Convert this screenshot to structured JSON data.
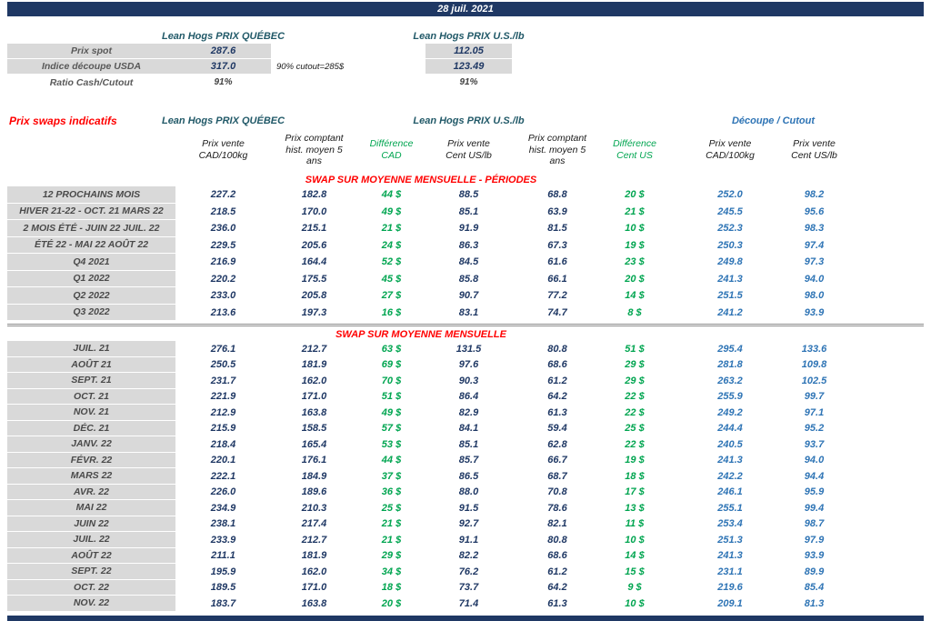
{
  "header": {
    "date": "28 juil. 2021"
  },
  "spot": {
    "qc_title": "Lean Hogs PRIX QUÉBEC",
    "us_title": "Lean Hogs PRIX U.S./lb",
    "rows": [
      {
        "label": "Prix spot",
        "qc": "287.6",
        "note": "",
        "us": "112.05"
      },
      {
        "label": "Indice découpe USDA",
        "qc": "317.0",
        "note": "90% cutout=285$",
        "us": "123.49"
      },
      {
        "label": "Ratio Cash/Cutout",
        "qc": "91%",
        "note": "",
        "us": "91%"
      }
    ]
  },
  "swaps": {
    "section_title": "Prix swaps indicatifs",
    "qc_group_title": "Lean Hogs PRIX QUÉBEC",
    "us_group_title": "Lean Hogs PRIX U.S./lb",
    "cutout_group_title": "Découpe / Cutout",
    "columns": [
      "Prix vente\nCAD/100kg",
      "Prix comptant\nhist. moyen 5\nans",
      "Différence\nCAD",
      "Prix vente\nCent US/lb",
      "Prix comptant\nhist. moyen 5\nans",
      "Différence\nCent US",
      "Prix vente\nCAD/100kg",
      "Prix vente\nCent US/lb"
    ],
    "periods_title": "SWAP SUR MOYENNE MENSUELLE - PÉRIODES",
    "monthly_title": "SWAP SUR MOYENNE MENSUELLE",
    "period_rows": [
      {
        "label": "12 PROCHAINS MOIS",
        "cells": [
          "227.2",
          "182.8",
          "44 $",
          "88.5",
          "68.8",
          "20 $",
          "252.0",
          "98.2"
        ]
      },
      {
        "label": "HIVER 21-22 - OCT. 21 MARS 22",
        "cells": [
          "218.5",
          "170.0",
          "49 $",
          "85.1",
          "63.9",
          "21 $",
          "245.5",
          "95.6"
        ]
      },
      {
        "label": "2 MOIS ÉTÉ - JUIN 22 JUIL. 22",
        "cells": [
          "236.0",
          "215.1",
          "21 $",
          "91.9",
          "81.5",
          "10 $",
          "252.3",
          "98.3"
        ]
      },
      {
        "label": "ÉTÉ 22 - MAI 22 AOÛT 22",
        "cells": [
          "229.5",
          "205.6",
          "24 $",
          "86.3",
          "67.3",
          "19 $",
          "250.3",
          "97.4"
        ]
      },
      {
        "label": "Q4 2021",
        "cells": [
          "216.9",
          "164.4",
          "52 $",
          "84.5",
          "61.6",
          "23 $",
          "249.8",
          "97.3"
        ]
      },
      {
        "label": "Q1 2022",
        "cells": [
          "220.2",
          "175.5",
          "45 $",
          "85.8",
          "66.1",
          "20 $",
          "241.3",
          "94.0"
        ]
      },
      {
        "label": "Q2 2022",
        "cells": [
          "233.0",
          "205.8",
          "27 $",
          "90.7",
          "77.2",
          "14 $",
          "251.5",
          "98.0"
        ]
      },
      {
        "label": "Q3 2022",
        "cells": [
          "213.6",
          "197.3",
          "16 $",
          "83.1",
          "74.7",
          "8 $",
          "241.2",
          "93.9"
        ]
      }
    ],
    "monthly_rows": [
      {
        "label": "JUIL. 21",
        "cells": [
          "276.1",
          "212.7",
          "63 $",
          "131.5",
          "80.8",
          "51 $",
          "295.4",
          "133.6"
        ]
      },
      {
        "label": "AOÛT 21",
        "cells": [
          "250.5",
          "181.9",
          "69 $",
          "97.6",
          "68.6",
          "29 $",
          "281.8",
          "109.8"
        ]
      },
      {
        "label": "SEPT. 21",
        "cells": [
          "231.7",
          "162.0",
          "70 $",
          "90.3",
          "61.2",
          "29 $",
          "263.2",
          "102.5"
        ]
      },
      {
        "label": "OCT. 21",
        "cells": [
          "221.9",
          "171.0",
          "51 $",
          "86.4",
          "64.2",
          "22 $",
          "255.9",
          "99.7"
        ]
      },
      {
        "label": "NOV. 21",
        "cells": [
          "212.9",
          "163.8",
          "49 $",
          "82.9",
          "61.3",
          "22 $",
          "249.2",
          "97.1"
        ]
      },
      {
        "label": "DÉC. 21",
        "cells": [
          "215.9",
          "158.5",
          "57 $",
          "84.1",
          "59.4",
          "25 $",
          "244.4",
          "95.2"
        ]
      },
      {
        "label": "JANV. 22",
        "cells": [
          "218.4",
          "165.4",
          "53 $",
          "85.1",
          "62.8",
          "22 $",
          "240.5",
          "93.7"
        ]
      },
      {
        "label": "FÉVR. 22",
        "cells": [
          "220.1",
          "176.1",
          "44 $",
          "85.7",
          "66.7",
          "19 $",
          "241.3",
          "94.0"
        ]
      },
      {
        "label": "MARS 22",
        "cells": [
          "222.1",
          "184.9",
          "37 $",
          "86.5",
          "68.7",
          "18 $",
          "242.2",
          "94.4"
        ]
      },
      {
        "label": "AVR. 22",
        "cells": [
          "226.0",
          "189.6",
          "36 $",
          "88.0",
          "70.8",
          "17 $",
          "246.1",
          "95.9"
        ]
      },
      {
        "label": "MAI 22",
        "cells": [
          "234.9",
          "210.3",
          "25 $",
          "91.5",
          "78.6",
          "13 $",
          "255.1",
          "99.4"
        ]
      },
      {
        "label": "JUIN 22",
        "cells": [
          "238.1",
          "217.4",
          "21 $",
          "92.7",
          "82.1",
          "11 $",
          "253.4",
          "98.7"
        ]
      },
      {
        "label": "JUIL. 22",
        "cells": [
          "233.9",
          "212.7",
          "21 $",
          "91.1",
          "80.8",
          "10 $",
          "251.3",
          "97.9"
        ]
      },
      {
        "label": "AOÛT 22",
        "cells": [
          "211.1",
          "181.9",
          "29 $",
          "82.2",
          "68.6",
          "14 $",
          "241.3",
          "93.9"
        ]
      },
      {
        "label": "SEPT. 22",
        "cells": [
          "195.9",
          "162.0",
          "34 $",
          "76.2",
          "61.2",
          "15 $",
          "231.1",
          "89.9"
        ]
      },
      {
        "label": "OCT. 22",
        "cells": [
          "189.5",
          "171.0",
          "18 $",
          "73.7",
          "64.2",
          "9 $",
          "219.6",
          "85.4"
        ]
      },
      {
        "label": "NOV. 22",
        "cells": [
          "183.7",
          "163.8",
          "20 $",
          "71.4",
          "61.3",
          "10 $",
          "209.1",
          "81.3"
        ]
      }
    ]
  }
}
